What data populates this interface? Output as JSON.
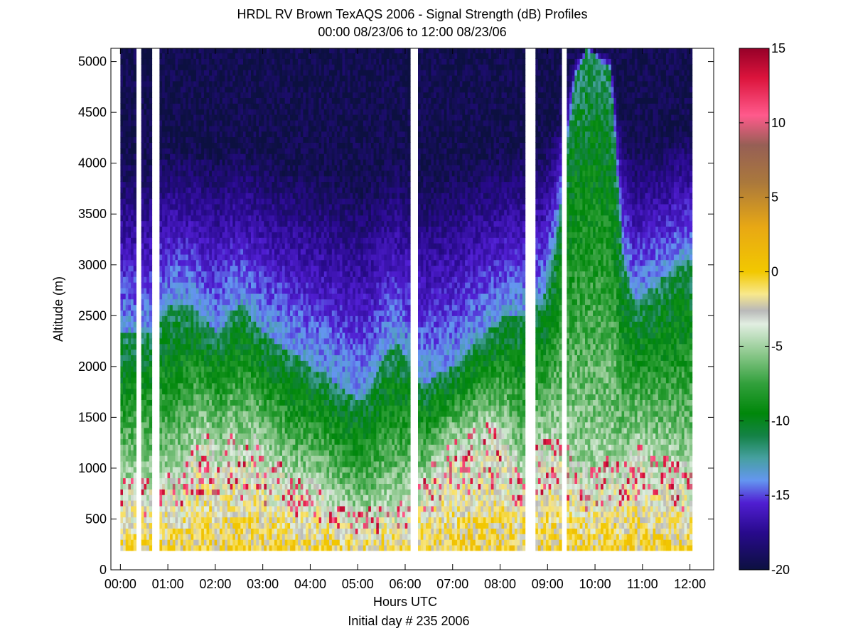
{
  "chart_data": {
    "type": "heatmap",
    "title": "HRDL RV Brown TexAQS 2006 - Signal Strength (dB) Profiles",
    "subtitle": "00:00 08/23/06 to 12:00 08/23/06",
    "xlabel": "Hours UTC",
    "xlabel2": "Initial day # 235  2006",
    "ylabel": "Altitude (m)",
    "xlim": [
      -0.2,
      12.5
    ],
    "ylim": [
      0,
      5130
    ],
    "x_ticks": [
      0,
      1,
      2,
      3,
      4,
      5,
      6,
      7,
      8,
      9,
      10,
      11,
      12
    ],
    "x_tick_labels": [
      "00:00",
      "01:00",
      "02:00",
      "03:00",
      "04:00",
      "05:00",
      "06:00",
      "07:00",
      "08:00",
      "09:00",
      "10:00",
      "11:00",
      "12:00"
    ],
    "y_ticks": [
      0,
      500,
      1000,
      1500,
      2000,
      2500,
      3000,
      3500,
      4000,
      4500,
      5000
    ],
    "y_tick_labels": [
      "0",
      "500",
      "1000",
      "1500",
      "2000",
      "2500",
      "3000",
      "3500",
      "4000",
      "4500",
      "5000"
    ],
    "colorbar": {
      "range": [
        -20,
        15
      ],
      "ticks": [
        15,
        10,
        5,
        0,
        -5,
        -10,
        -15,
        -20
      ],
      "tick_labels": [
        "15",
        "10",
        "5",
        "0",
        "-5",
        "-10",
        "-15",
        "-20"
      ]
    },
    "data_altitude_range": [
      190,
      5130
    ],
    "data_gaps_hours": [
      [
        0.32,
        0.42
      ],
      [
        0.62,
        0.82
      ],
      [
        6.1,
        6.25
      ],
      [
        8.5,
        8.72
      ],
      [
        9.28,
        9.38
      ]
    ],
    "profile_time_hours": [
      0.05,
      0.55,
      0.95,
      1.25,
      1.55,
      1.8,
      2.05,
      2.3,
      2.55,
      2.8,
      3.05,
      3.3,
      3.55,
      3.8,
      4.05,
      4.3,
      4.55,
      4.8,
      5.05,
      5.3,
      5.55,
      5.8,
      6.4,
      6.65,
      6.9,
      7.15,
      7.4,
      7.65,
      7.9,
      8.15,
      8.4,
      8.85,
      9.15,
      9.55,
      9.8,
      10.05,
      10.3,
      10.55,
      10.8,
      11.05,
      11.3,
      11.55,
      11.8,
      12.0
    ],
    "boundary_layer_top_m": [
      2300,
      2300,
      2550,
      2600,
      2550,
      2400,
      2300,
      2500,
      2600,
      2400,
      2300,
      2200,
      2100,
      2050,
      1950,
      1900,
      1800,
      1700,
      1650,
      1800,
      2100,
      2200,
      1800,
      1900,
      1950,
      2050,
      2200,
      2300,
      2400,
      2500,
      2500,
      2600,
      3200,
      4800,
      5100,
      5000,
      4900,
      3100,
      2600,
      2700,
      2800,
      2900,
      3000,
      3000
    ],
    "mixed_layer_top_m": [
      900,
      900,
      950,
      950,
      1300,
      1350,
      1150,
      1300,
      1200,
      1300,
      1100,
      1050,
      900,
      900,
      850,
      800,
      700,
      600,
      550,
      600,
      700,
      650,
      900,
      1100,
      1250,
      1300,
      1350,
      1400,
      1450,
      1300,
      1000,
      1300,
      1350,
      1100,
      1000,
      1000,
      1100,
      1000,
      1250,
      1200,
      1100,
      1100,
      1050,
      1000
    ]
  }
}
